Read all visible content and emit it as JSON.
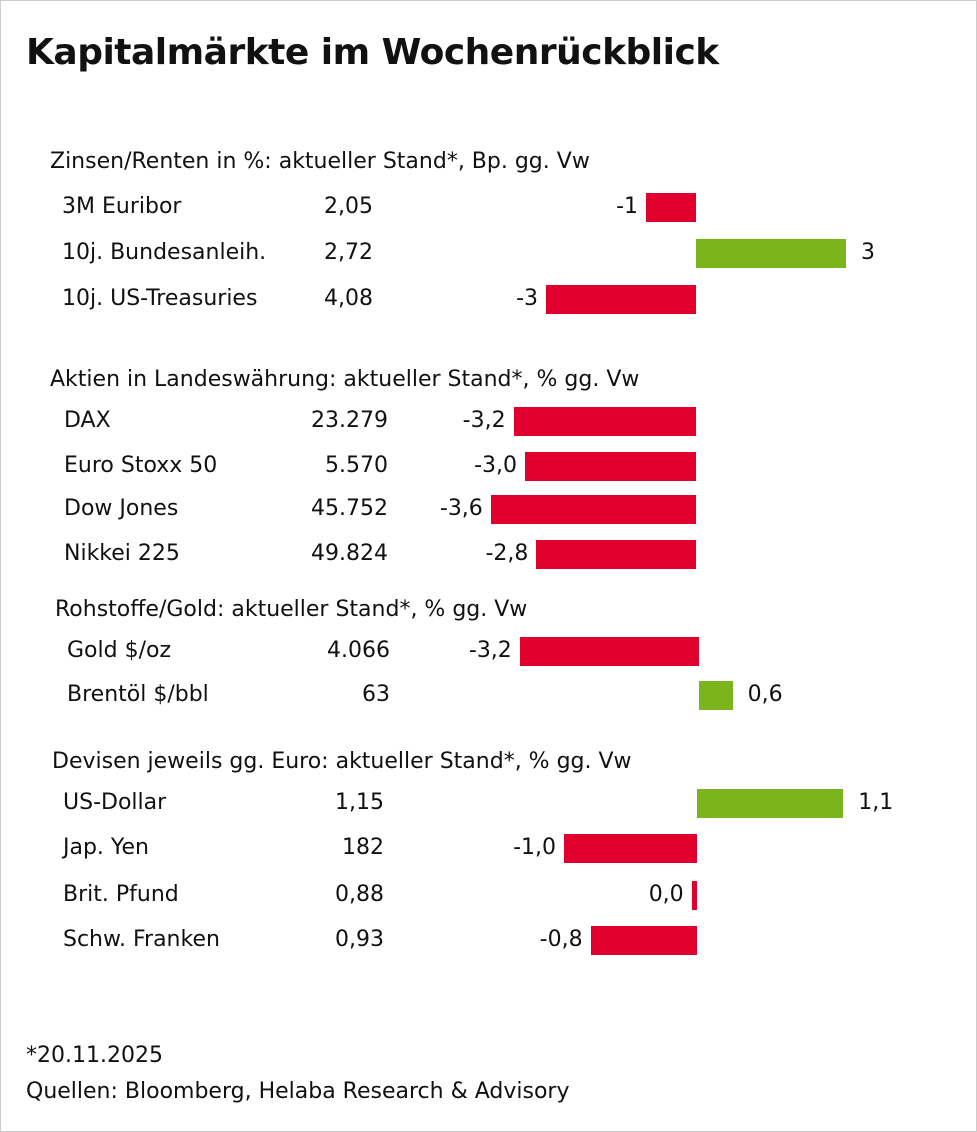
{
  "title": "Kapitalmärkte im Wochenrückblick",
  "colors": {
    "negative": "#E1002D",
    "positive": "#7AB51D"
  },
  "chart_data": {
    "type": "bar",
    "orientation": "horizontal",
    "title": "Kapitalmärkte im Wochenrückblick",
    "sections": [
      {
        "header": "Zinsen/Renten in %: aktueller Stand*, Bp. gg. Vw",
        "rows": [
          {
            "label": "3M Euribor",
            "level": "2,05",
            "change": -1,
            "change_label": "-1"
          },
          {
            "label": "10j. Bundesanleih.",
            "level": "2,72",
            "change": 3,
            "change_label": "3"
          },
          {
            "label": "10j. US-Treasuries",
            "level": "4,08",
            "change": -3,
            "change_label": "-3"
          }
        ]
      },
      {
        "header": "Aktien in Landeswährung: aktueller Stand*, % gg. Vw",
        "rows": [
          {
            "label": "DAX",
            "level": "23.279",
            "change": -3.2,
            "change_label": "-3,2"
          },
          {
            "label": "Euro Stoxx 50",
            "level": "5.570",
            "change": -3.0,
            "change_label": "-3,0"
          },
          {
            "label": "Dow Jones",
            "level": "45.752",
            "change": -3.6,
            "change_label": "-3,6"
          },
          {
            "label": "Nikkei 225",
            "level": "49.824",
            "change": -2.8,
            "change_label": "-2,8"
          }
        ]
      },
      {
        "header": "Rohstoffe/Gold: aktueller Stand*, % gg. Vw",
        "rows": [
          {
            "label": "Gold $/oz",
            "level": "4.066",
            "change": -3.2,
            "change_label": "-3,2"
          },
          {
            "label": "Brentöl $/bbl",
            "level": "63",
            "change": 0.6,
            "change_label": "0,6"
          }
        ]
      },
      {
        "header": "Devisen jeweils gg. Euro: aktueller Stand*, % gg. Vw",
        "rows": [
          {
            "label": "US-Dollar",
            "level": "1,15",
            "change": 1.1,
            "change_label": "1,1"
          },
          {
            "label": "Jap. Yen",
            "level": "182",
            "change": -1.0,
            "change_label": "-1,0"
          },
          {
            "label": "Brit. Pfund",
            "level": "0,88",
            "change": -0.04,
            "change_label": "0,0"
          },
          {
            "label": "Schw. Franken",
            "level": "0,93",
            "change": -0.8,
            "change_label": "-0,8"
          }
        ]
      }
    ]
  },
  "footer": {
    "date_note": "*20.11.2025",
    "sources": "Quellen: Bloomberg, Helaba Research & Advisory"
  }
}
